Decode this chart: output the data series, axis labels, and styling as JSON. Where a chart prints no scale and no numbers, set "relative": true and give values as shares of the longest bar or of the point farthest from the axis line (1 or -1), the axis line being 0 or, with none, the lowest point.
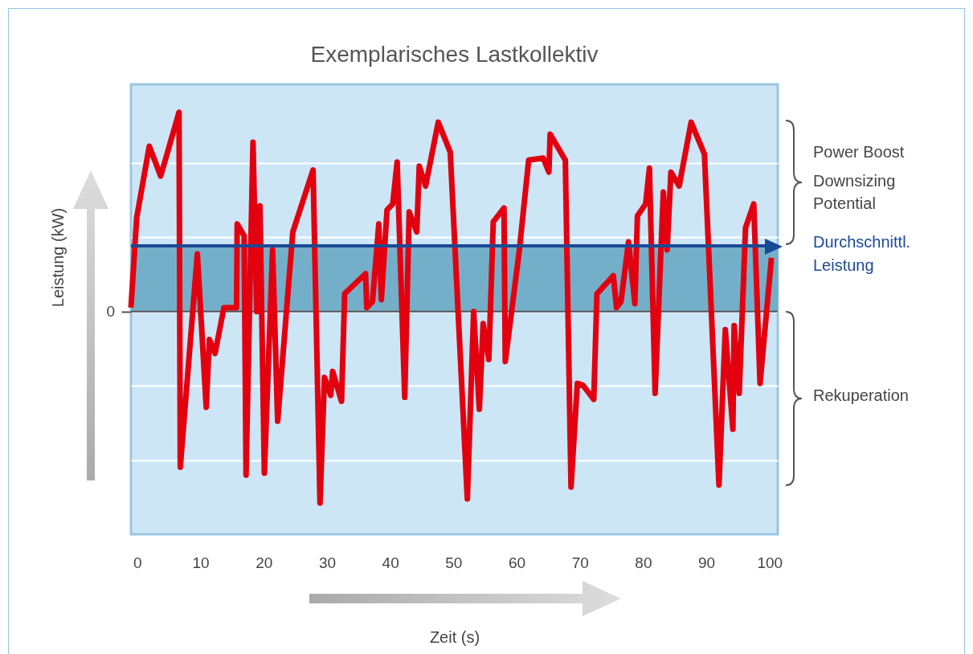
{
  "chart_data": {
    "type": "line",
    "title": "Exemplarisches Lastkollektiv",
    "xlabel": "Zeit (s)",
    "ylabel": "Leistung (kW)",
    "relative": true,
    "x": [
      -1,
      -0.1,
      1.9,
      3.7,
      6.6,
      6.8,
      9.5,
      10.9,
      11.4,
      12.3,
      13.7,
      15.7,
      15.8,
      16.9,
      17.2,
      18.3,
      18.9,
      19.4,
      20.1,
      21.4,
      22.2,
      24.6,
      27.8,
      28.9,
      29.6,
      30.6,
      30.9,
      32.3,
      32.8,
      36.1,
      36.3,
      37.2,
      38.2,
      38.6,
      39.5,
      40.4,
      41.1,
      42.3,
      43.0,
      44.2,
      44.6,
      45.6,
      47.6,
      49.5,
      52.2,
      53.2,
      54.1,
      54.7,
      55.6,
      56.3,
      58.0,
      58.2,
      60.4,
      61.9,
      64.2,
      65.1,
      65.3,
      67.7,
      68.6,
      69.6,
      70.5,
      72.2,
      72.7,
      75.3,
      75.8,
      76.5,
      77.7,
      78.7,
      79.1,
      80.4,
      81.0,
      81.9,
      83.2,
      83.8,
      84.4,
      85.7,
      87.6,
      89.7,
      92.0,
      93.0,
      94.2,
      94.4,
      95.2,
      96.2,
      97.5,
      98.5,
      100.3
    ],
    "series": [
      {
        "color": "#e3000f",
        "values": [
          0.02,
          0.47,
          0.83,
          0.68,
          1.0,
          -0.78,
          0.29,
          -0.48,
          -0.14,
          -0.21,
          0.02,
          0.02,
          0.44,
          0.38,
          -0.82,
          0.85,
          0.0,
          0.53,
          -0.81,
          0.31,
          -0.55,
          0.4,
          0.71,
          -0.96,
          -0.33,
          -0.42,
          -0.3,
          -0.45,
          0.09,
          0.19,
          0.02,
          0.05,
          0.44,
          0.06,
          0.51,
          0.54,
          0.75,
          -0.43,
          0.5,
          0.4,
          0.73,
          0.63,
          0.95,
          0.8,
          -0.94,
          0.0,
          -0.49,
          -0.06,
          -0.24,
          0.45,
          0.52,
          -0.25,
          0.3,
          0.76,
          0.77,
          0.7,
          0.89,
          0.76,
          -0.88,
          -0.36,
          -0.37,
          -0.44,
          0.09,
          0.18,
          0.02,
          0.05,
          0.35,
          0.04,
          0.48,
          0.54,
          0.72,
          -0.41,
          0.6,
          0.31,
          0.7,
          0.63,
          0.95,
          0.79,
          -0.87,
          -0.09,
          -0.59,
          -0.07,
          -0.41,
          0.42,
          0.54,
          -0.36,
          0.27
        ]
      }
    ],
    "xlim": [
      -1,
      101.3
    ],
    "xticks": [
      0,
      10,
      20,
      30,
      40,
      50,
      60,
      70,
      80,
      90,
      100
    ],
    "grid": "y",
    "marker": "none",
    "line_style": "solid",
    "ref_lines": [
      {
        "axis": "y",
        "value": 0.33,
        "label": "Durchschnittl. Leistung",
        "color": "#1a4a96"
      }
    ],
    "bands": [
      {
        "axis": "y",
        "from": 0,
        "to": 0.33,
        "color": "#6aa9c4"
      }
    ],
    "annotations": [
      "Power Boost",
      "Downsizing Potential",
      "Rekuperation",
      "0"
    ]
  }
}
